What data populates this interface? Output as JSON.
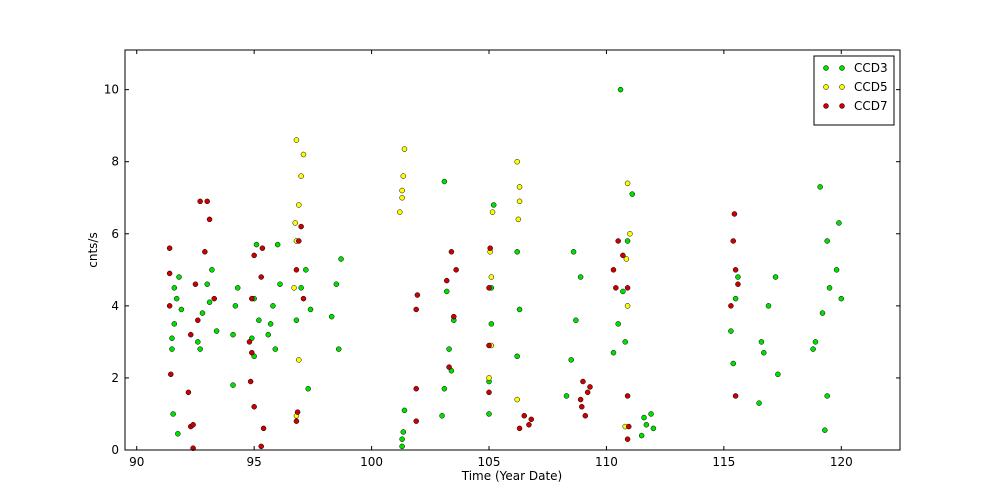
{
  "chart_data": {
    "type": "scatter",
    "x_label": "Time (Year Date)",
    "y_label": "cnts/s",
    "xlim": [
      89.5,
      122.5
    ],
    "ylim": [
      0,
      11.1
    ],
    "xticks": [
      90,
      95,
      100,
      105,
      110,
      115,
      120
    ],
    "yticks": [
      0,
      2,
      4,
      6,
      8,
      10
    ],
    "legend": "upper right",
    "series": [
      {
        "name": "CCD3",
        "color": "#00e000",
        "x": [
          91.5,
          91.6,
          91.7,
          91.8,
          91.9,
          91.55,
          91.75,
          91.5,
          91.6,
          92.6,
          92.8,
          93.0,
          93.2,
          93.4,
          92.7,
          93.1,
          94.1,
          94.2,
          94.3,
          94.1,
          94.9,
          95.0,
          95.1,
          95.2,
          95.0,
          95.6,
          95.8,
          96.0,
          96.1,
          95.7,
          95.9,
          96.8,
          97.0,
          97.2,
          97.4,
          97.3,
          98.3,
          98.5,
          98.7,
          98.6,
          101.3,
          101.35,
          101.4,
          101.3,
          103.1,
          103.3,
          103.5,
          103.2,
          103.4,
          103.1,
          103.0,
          105.0,
          105.1,
          105.2,
          105.1,
          105.0,
          106.2,
          106.3,
          106.2,
          108.5,
          108.7,
          108.9,
          108.6,
          108.3,
          110.3,
          110.5,
          110.7,
          110.9,
          111.1,
          110.6,
          110.8,
          111.5,
          111.7,
          111.9,
          112.0,
          111.6,
          115.3,
          115.5,
          115.6,
          115.4,
          116.6,
          116.9,
          117.2,
          116.7,
          116.5,
          117.3,
          118.9,
          119.2,
          119.5,
          119.8,
          120.0,
          119.4,
          119.1,
          118.8,
          119.9,
          119.3,
          119.4
        ],
        "values": [
          2.8,
          3.5,
          4.2,
          4.8,
          3.9,
          1.0,
          0.45,
          3.1,
          4.5,
          3.0,
          3.8,
          4.6,
          5.0,
          3.3,
          2.8,
          4.1,
          3.2,
          4.0,
          4.5,
          1.8,
          3.1,
          4.2,
          5.7,
          3.6,
          2.6,
          3.2,
          4.0,
          5.7,
          4.6,
          3.5,
          2.8,
          3.6,
          4.5,
          5.0,
          3.9,
          1.7,
          3.7,
          4.6,
          5.3,
          2.8,
          0.1,
          0.5,
          1.1,
          0.3,
          1.7,
          2.8,
          3.6,
          4.4,
          2.2,
          7.45,
          0.95,
          1.9,
          3.5,
          6.8,
          4.5,
          1.0,
          2.6,
          3.9,
          5.5,
          2.5,
          3.6,
          4.8,
          5.5,
          1.5,
          2.7,
          3.5,
          4.4,
          5.8,
          7.1,
          10.0,
          3.0,
          0.4,
          0.7,
          1.0,
          0.6,
          0.9,
          3.3,
          4.2,
          4.8,
          2.4,
          3.0,
          4.0,
          4.8,
          2.7,
          1.3,
          2.1,
          3.0,
          3.8,
          4.5,
          5.0,
          4.2,
          5.8,
          7.3,
          2.8,
          6.3,
          0.55,
          1.5
        ]
      },
      {
        "name": "CCD5",
        "color": "#ffff00",
        "x": [
          96.7,
          96.8,
          96.9,
          97.0,
          97.1,
          96.8,
          96.9,
          96.8,
          96.75,
          101.2,
          101.3,
          101.35,
          101.4,
          101.3,
          105.0,
          105.1,
          105.15,
          105.05,
          105.1,
          106.2,
          106.25,
          106.3,
          106.2,
          106.3,
          110.8,
          110.9,
          111.0,
          110.9,
          110.85
        ],
        "values": [
          4.5,
          5.8,
          6.8,
          7.6,
          8.2,
          8.6,
          2.5,
          0.95,
          6.3,
          6.6,
          7.2,
          7.6,
          8.35,
          7.0,
          2.0,
          4.8,
          6.6,
          5.5,
          2.9,
          1.4,
          6.4,
          7.3,
          8.0,
          6.9,
          0.65,
          4.0,
          6.0,
          7.4,
          5.3
        ]
      },
      {
        "name": "CCD7",
        "color": "#cc0000",
        "x": [
          91.4,
          91.4,
          91.45,
          91.4,
          92.3,
          92.5,
          92.7,
          92.9,
          93.1,
          93.3,
          92.6,
          93.0,
          92.3,
          92.4,
          92.2,
          92.4,
          94.8,
          94.9,
          95.0,
          94.85,
          94.9,
          95.0,
          95.3,
          95.35,
          95.4,
          95.3,
          96.8,
          96.9,
          97.0,
          97.1,
          96.8,
          96.85,
          101.9,
          101.95,
          101.9,
          101.9,
          103.2,
          103.4,
          103.6,
          103.3,
          103.5,
          105.0,
          105.05,
          105.0,
          105.0,
          106.3,
          106.5,
          106.7,
          106.8,
          108.9,
          109.0,
          109.2,
          109.3,
          109.1,
          108.95,
          110.3,
          110.5,
          110.7,
          110.9,
          110.4,
          110.9,
          110.95,
          110.9,
          115.3,
          115.4,
          115.5,
          115.6,
          115.45,
          115.5
        ],
        "values": [
          4.9,
          5.6,
          2.1,
          4.0,
          3.2,
          4.6,
          6.9,
          5.5,
          6.4,
          4.2,
          3.6,
          6.9,
          0.65,
          0.05,
          1.6,
          0.7,
          3.0,
          4.2,
          5.4,
          1.9,
          2.7,
          1.2,
          4.8,
          5.6,
          0.6,
          0.1,
          5.0,
          5.8,
          6.2,
          4.2,
          0.8,
          1.05,
          3.9,
          4.3,
          1.7,
          0.8,
          4.7,
          5.5,
          5.0,
          2.3,
          3.7,
          4.5,
          5.6,
          1.6,
          2.9,
          0.6,
          0.95,
          0.7,
          0.85,
          1.4,
          1.9,
          1.6,
          1.75,
          0.95,
          1.2,
          5.0,
          5.8,
          5.4,
          4.5,
          4.5,
          1.5,
          0.65,
          0.3,
          4.0,
          5.8,
          5.0,
          4.6,
          6.55,
          1.5
        ]
      }
    ]
  }
}
